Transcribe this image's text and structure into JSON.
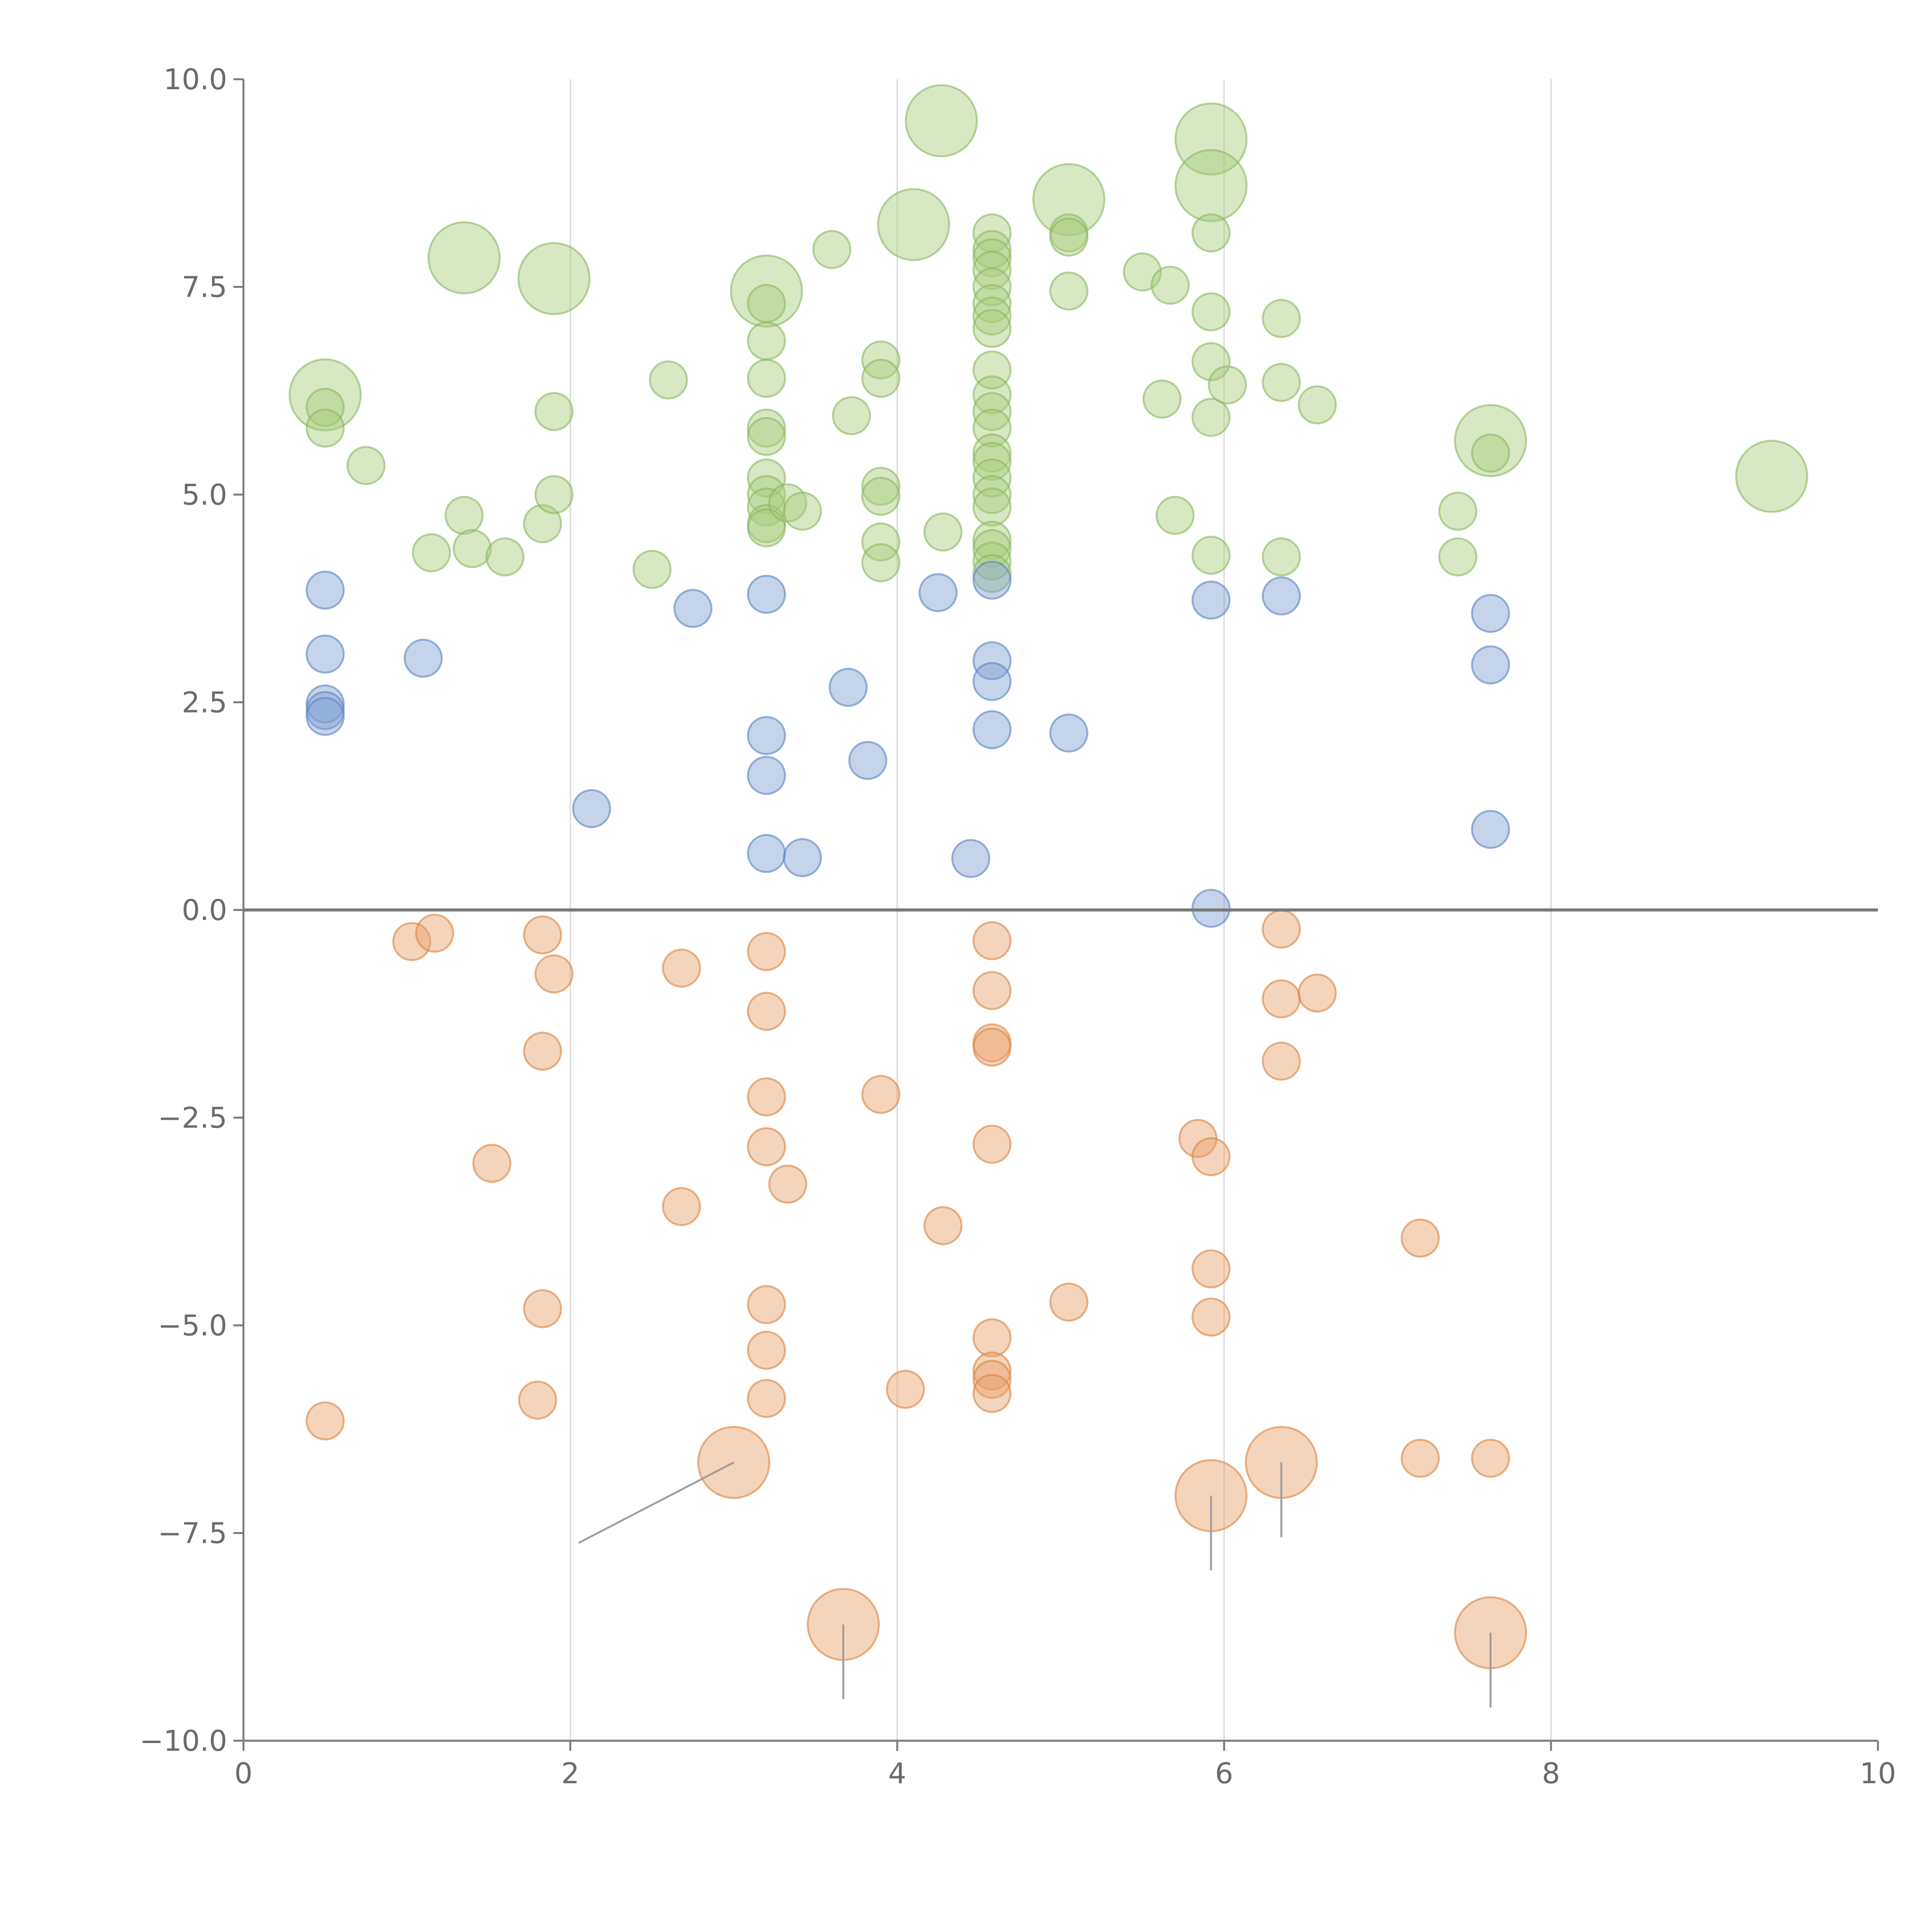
{
  "chart_data": {
    "type": "scatter",
    "title": "",
    "xlabel": "",
    "ylabel": "",
    "xlim": [
      0,
      10
    ],
    "ylim": [
      -10,
      10
    ],
    "grid": "vertical",
    "x_ticks": [
      0,
      2,
      4,
      6,
      8,
      10
    ],
    "x_tick_labels": [
      "0",
      "2",
      "4",
      "6",
      "8",
      "10"
    ],
    "y_ticks": [
      10,
      7.5,
      5,
      2.5,
      0,
      -2.5,
      -5,
      -7.5,
      -10
    ],
    "y_tick_labels": [
      "10.0",
      "7.5",
      "5.0",
      "2.5",
      "0.0",
      "−2.5",
      "−5.0",
      "−7.5",
      "−10.0"
    ],
    "reference_line_y": 0,
    "colors": {
      "green_fill": "#a9cb7b",
      "green_stroke": "#8bb560",
      "blue_fill": "#7f9fd3",
      "blue_stroke": "#5b82c4",
      "orange_fill": "#e8a06b",
      "orange_stroke": "#d9843f",
      "axis": "#7a7a7a",
      "grid": "#d9d9d9"
    },
    "series": [
      {
        "name": "green",
        "fill_key": "green_fill",
        "stroke_key": "green_stroke",
        "points": [
          {
            "x": 0.5,
            "y": 6.2,
            "s": 3
          },
          {
            "x": 0.5,
            "y": 6.05,
            "s": 1
          },
          {
            "x": 0.5,
            "y": 5.8,
            "s": 1
          },
          {
            "x": 0.75,
            "y": 5.35,
            "s": 1
          },
          {
            "x": 1.15,
            "y": 4.3,
            "s": 1
          },
          {
            "x": 1.35,
            "y": 4.75,
            "s": 1
          },
          {
            "x": 1.4,
            "y": 4.35,
            "s": 1
          },
          {
            "x": 1.35,
            "y": 7.85,
            "s": 3
          },
          {
            "x": 1.6,
            "y": 4.25,
            "s": 1
          },
          {
            "x": 1.9,
            "y": 7.6,
            "s": 3
          },
          {
            "x": 1.83,
            "y": 4.65,
            "s": 1
          },
          {
            "x": 1.9,
            "y": 5.0,
            "s": 1
          },
          {
            "x": 1.9,
            "y": 6.0,
            "s": 1
          },
          {
            "x": 2.5,
            "y": 4.1,
            "s": 1
          },
          {
            "x": 2.6,
            "y": 6.38,
            "s": 1
          },
          {
            "x": 3.2,
            "y": 7.45,
            "s": 3
          },
          {
            "x": 3.2,
            "y": 7.3,
            "s": 1
          },
          {
            "x": 3.2,
            "y": 6.85,
            "s": 1
          },
          {
            "x": 3.2,
            "y": 6.4,
            "s": 1
          },
          {
            "x": 3.2,
            "y": 5.8,
            "s": 1
          },
          {
            "x": 3.2,
            "y": 5.7,
            "s": 1
          },
          {
            "x": 3.2,
            "y": 5.2,
            "s": 1
          },
          {
            "x": 3.2,
            "y": 5.0,
            "s": 1
          },
          {
            "x": 3.2,
            "y": 4.85,
            "s": 1
          },
          {
            "x": 3.2,
            "y": 4.65,
            "s": 1
          },
          {
            "x": 3.2,
            "y": 4.6,
            "s": 1
          },
          {
            "x": 3.33,
            "y": 4.9,
            "s": 1
          },
          {
            "x": 3.42,
            "y": 4.8,
            "s": 1
          },
          {
            "x": 3.6,
            "y": 7.95,
            "s": 1
          },
          {
            "x": 3.72,
            "y": 5.95,
            "s": 1
          },
          {
            "x": 3.9,
            "y": 6.62,
            "s": 1
          },
          {
            "x": 3.9,
            "y": 6.4,
            "s": 1
          },
          {
            "x": 3.9,
            "y": 5.1,
            "s": 1
          },
          {
            "x": 3.9,
            "y": 4.98,
            "s": 1
          },
          {
            "x": 3.9,
            "y": 4.43,
            "s": 1
          },
          {
            "x": 3.9,
            "y": 4.18,
            "s": 1
          },
          {
            "x": 4.1,
            "y": 8.25,
            "s": 3
          },
          {
            "x": 4.27,
            "y": 9.5,
            "s": 3
          },
          {
            "x": 4.28,
            "y": 4.55,
            "s": 1
          },
          {
            "x": 4.58,
            "y": 8.15,
            "s": 1
          },
          {
            "x": 4.58,
            "y": 7.95,
            "s": 1
          },
          {
            "x": 4.58,
            "y": 7.85,
            "s": 1
          },
          {
            "x": 4.58,
            "y": 7.7,
            "s": 1
          },
          {
            "x": 4.58,
            "y": 7.5,
            "s": 1
          },
          {
            "x": 4.58,
            "y": 7.3,
            "s": 1
          },
          {
            "x": 4.58,
            "y": 7.15,
            "s": 1
          },
          {
            "x": 4.58,
            "y": 7.0,
            "s": 1
          },
          {
            "x": 4.58,
            "y": 6.5,
            "s": 1
          },
          {
            "x": 4.58,
            "y": 6.2,
            "s": 1
          },
          {
            "x": 4.58,
            "y": 6.0,
            "s": 1
          },
          {
            "x": 4.58,
            "y": 5.8,
            "s": 1
          },
          {
            "x": 4.58,
            "y": 5.5,
            "s": 1
          },
          {
            "x": 4.58,
            "y": 5.4,
            "s": 1
          },
          {
            "x": 4.58,
            "y": 5.2,
            "s": 1
          },
          {
            "x": 4.58,
            "y": 5.0,
            "s": 1
          },
          {
            "x": 4.58,
            "y": 4.85,
            "s": 1
          },
          {
            "x": 4.58,
            "y": 4.45,
            "s": 1
          },
          {
            "x": 4.58,
            "y": 4.35,
            "s": 1
          },
          {
            "x": 4.58,
            "y": 4.2,
            "s": 1
          },
          {
            "x": 4.58,
            "y": 4.05,
            "s": 1
          },
          {
            "x": 5.05,
            "y": 8.55,
            "s": 3
          },
          {
            "x": 5.05,
            "y": 8.15,
            "s": 1
          },
          {
            "x": 5.05,
            "y": 8.1,
            "s": 1
          },
          {
            "x": 5.05,
            "y": 7.45,
            "s": 1
          },
          {
            "x": 5.5,
            "y": 7.68,
            "s": 1
          },
          {
            "x": 5.62,
            "y": 6.15,
            "s": 1
          },
          {
            "x": 5.67,
            "y": 7.52,
            "s": 1
          },
          {
            "x": 5.7,
            "y": 4.75,
            "s": 1
          },
          {
            "x": 5.92,
            "y": 9.28,
            "s": 3
          },
          {
            "x": 5.92,
            "y": 8.72,
            "s": 3
          },
          {
            "x": 5.92,
            "y": 8.15,
            "s": 1
          },
          {
            "x": 5.92,
            "y": 7.2,
            "s": 1
          },
          {
            "x": 5.92,
            "y": 6.6,
            "s": 1
          },
          {
            "x": 5.92,
            "y": 5.93,
            "s": 1
          },
          {
            "x": 5.92,
            "y": 4.27,
            "s": 1
          },
          {
            "x": 6.02,
            "y": 6.32,
            "s": 1
          },
          {
            "x": 6.35,
            "y": 7.12,
            "s": 1
          },
          {
            "x": 6.35,
            "y": 6.35,
            "s": 1
          },
          {
            "x": 6.35,
            "y": 4.25,
            "s": 1
          },
          {
            "x": 6.57,
            "y": 6.08,
            "s": 1
          },
          {
            "x": 7.43,
            "y": 4.8,
            "s": 1
          },
          {
            "x": 7.43,
            "y": 4.25,
            "s": 1
          },
          {
            "x": 7.63,
            "y": 5.65,
            "s": 3
          },
          {
            "x": 7.63,
            "y": 5.5,
            "s": 1
          },
          {
            "x": 9.35,
            "y": 5.22,
            "s": 3
          }
        ]
      },
      {
        "name": "blue",
        "fill_key": "blue_fill",
        "stroke_key": "blue_stroke",
        "points": [
          {
            "x": 0.5,
            "y": 3.85,
            "s": 1
          },
          {
            "x": 0.5,
            "y": 3.08,
            "s": 1
          },
          {
            "x": 0.5,
            "y": 2.48,
            "s": 1
          },
          {
            "x": 0.5,
            "y": 2.4,
            "s": 1
          },
          {
            "x": 0.5,
            "y": 2.33,
            "s": 1
          },
          {
            "x": 1.1,
            "y": 3.03,
            "s": 1
          },
          {
            "x": 2.13,
            "y": 1.22,
            "s": 1
          },
          {
            "x": 2.75,
            "y": 3.63,
            "s": 1
          },
          {
            "x": 3.2,
            "y": 3.8,
            "s": 1
          },
          {
            "x": 3.2,
            "y": 2.1,
            "s": 1
          },
          {
            "x": 3.2,
            "y": 1.62,
            "s": 1
          },
          {
            "x": 3.2,
            "y": 0.68,
            "s": 1
          },
          {
            "x": 3.42,
            "y": 0.63,
            "s": 1
          },
          {
            "x": 3.7,
            "y": 2.68,
            "s": 1
          },
          {
            "x": 3.82,
            "y": 1.8,
            "s": 1
          },
          {
            "x": 4.25,
            "y": 3.82,
            "s": 1
          },
          {
            "x": 4.45,
            "y": 0.62,
            "s": 1
          },
          {
            "x": 4.58,
            "y": 3.97,
            "s": 1
          },
          {
            "x": 4.58,
            "y": 3.0,
            "s": 1
          },
          {
            "x": 4.58,
            "y": 2.75,
            "s": 1
          },
          {
            "x": 4.58,
            "y": 2.17,
            "s": 1
          },
          {
            "x": 5.05,
            "y": 2.13,
            "s": 1
          },
          {
            "x": 5.92,
            "y": 3.73,
            "s": 1
          },
          {
            "x": 5.92,
            "y": 0.02,
            "s": 1
          },
          {
            "x": 6.35,
            "y": 3.78,
            "s": 1
          },
          {
            "x": 7.63,
            "y": 3.57,
            "s": 1
          },
          {
            "x": 7.63,
            "y": 2.95,
            "s": 1
          },
          {
            "x": 7.63,
            "y": 0.97,
            "s": 1
          }
        ]
      },
      {
        "name": "orange",
        "fill_key": "orange_fill",
        "stroke_key": "orange_stroke",
        "points": [
          {
            "x": 0.5,
            "y": -6.15,
            "s": 1
          },
          {
            "x": 1.03,
            "y": -0.38,
            "s": 1
          },
          {
            "x": 1.17,
            "y": -0.28,
            "s": 1
          },
          {
            "x": 1.52,
            "y": -3.05,
            "s": 1
          },
          {
            "x": 1.8,
            "y": -5.9,
            "s": 1
          },
          {
            "x": 1.83,
            "y": -0.3,
            "s": 1
          },
          {
            "x": 1.9,
            "y": -0.77,
            "s": 1
          },
          {
            "x": 1.83,
            "y": -1.7,
            "s": 1
          },
          {
            "x": 1.83,
            "y": -4.8,
            "s": 1
          },
          {
            "x": 2.68,
            "y": -0.7,
            "s": 1
          },
          {
            "x": 2.68,
            "y": -3.57,
            "s": 1
          },
          {
            "x": 3.0,
            "y": -6.65,
            "s": 3
          },
          {
            "x": 3.2,
            "y": -0.5,
            "s": 1
          },
          {
            "x": 3.2,
            "y": -1.22,
            "s": 1
          },
          {
            "x": 3.2,
            "y": -2.25,
            "s": 1
          },
          {
            "x": 3.2,
            "y": -2.85,
            "s": 1
          },
          {
            "x": 3.2,
            "y": -4.75,
            "s": 1
          },
          {
            "x": 3.2,
            "y": -5.3,
            "s": 1
          },
          {
            "x": 3.2,
            "y": -5.88,
            "s": 1
          },
          {
            "x": 3.33,
            "y": -3.3,
            "s": 1
          },
          {
            "x": 3.67,
            "y": -8.6,
            "s": 3
          },
          {
            "x": 3.9,
            "y": -2.22,
            "s": 1
          },
          {
            "x": 4.05,
            "y": -5.77,
            "s": 1
          },
          {
            "x": 4.28,
            "y": -3.8,
            "s": 1
          },
          {
            "x": 4.58,
            "y": -0.37,
            "s": 1
          },
          {
            "x": 4.58,
            "y": -0.97,
            "s": 1
          },
          {
            "x": 4.58,
            "y": -1.6,
            "s": 1
          },
          {
            "x": 4.58,
            "y": -1.65,
            "s": 1
          },
          {
            "x": 4.58,
            "y": -2.82,
            "s": 1
          },
          {
            "x": 4.58,
            "y": -5.15,
            "s": 1
          },
          {
            "x": 4.58,
            "y": -5.55,
            "s": 1
          },
          {
            "x": 4.58,
            "y": -5.65,
            "s": 1
          },
          {
            "x": 4.58,
            "y": -5.82,
            "s": 1
          },
          {
            "x": 5.05,
            "y": -4.72,
            "s": 1
          },
          {
            "x": 5.84,
            "y": -2.75,
            "s": 1
          },
          {
            "x": 5.92,
            "y": -2.97,
            "s": 1
          },
          {
            "x": 5.92,
            "y": -4.32,
            "s": 1
          },
          {
            "x": 5.92,
            "y": -4.9,
            "s": 1
          },
          {
            "x": 5.92,
            "y": -7.05,
            "s": 3
          },
          {
            "x": 6.35,
            "y": -0.23,
            "s": 1
          },
          {
            "x": 6.35,
            "y": -1.07,
            "s": 1
          },
          {
            "x": 6.35,
            "y": -1.82,
            "s": 1
          },
          {
            "x": 6.35,
            "y": -6.65,
            "s": 3
          },
          {
            "x": 6.57,
            "y": -1.0,
            "s": 1
          },
          {
            "x": 7.2,
            "y": -3.95,
            "s": 1
          },
          {
            "x": 7.2,
            "y": -6.6,
            "s": 1
          },
          {
            "x": 7.63,
            "y": -6.6,
            "s": 1
          },
          {
            "x": 7.63,
            "y": -8.7,
            "s": 3
          }
        ]
      }
    ],
    "leader_lines": [
      {
        "from": [
          3.0,
          -6.65
        ],
        "to": [
          2.05,
          -7.62
        ]
      },
      {
        "from": [
          3.67,
          -8.6
        ],
        "to": [
          3.67,
          -9.5
        ]
      },
      {
        "from": [
          5.92,
          -7.05
        ],
        "to": [
          5.92,
          -7.95
        ]
      },
      {
        "from": [
          6.35,
          -6.65
        ],
        "to": [
          6.35,
          -7.55
        ]
      },
      {
        "from": [
          7.63,
          -8.7
        ],
        "to": [
          7.63,
          -9.6
        ]
      }
    ]
  }
}
